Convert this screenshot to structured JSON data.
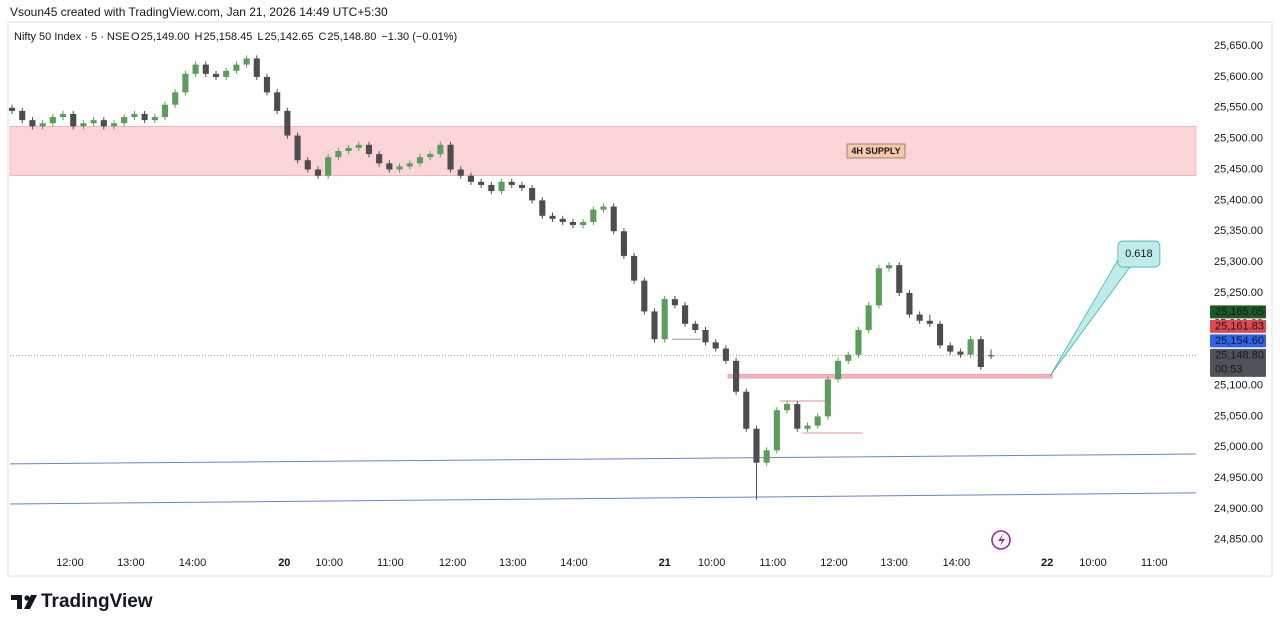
{
  "header": {
    "attribution": "Vsoun45 created with TradingView.com, Jan 21, 2026 14:49 UTC+5:30",
    "symbol": "Nifty 50 Index · 5 · NSE",
    "ohlc": [
      {
        "key": "O",
        "value": "25,149.00"
      },
      {
        "key": "H",
        "value": "25,158.45"
      },
      {
        "key": "L",
        "value": "25,142.65"
      },
      {
        "key": "C",
        "value": "25,148.80"
      }
    ],
    "change": "−1.30 (−0.01%)"
  },
  "footer": {
    "brand": "TradingView"
  },
  "chart_data": {
    "type": "candlestick",
    "up_color": "#5b9e5b",
    "down_color": "#4d4d4d",
    "ohlc": [
      [
        25550,
        25555,
        25540,
        25545
      ],
      [
        25545,
        25550,
        25525,
        25530
      ],
      [
        25530,
        25535,
        25515,
        25520
      ],
      [
        25520,
        25530,
        25515,
        25525
      ],
      [
        25525,
        25540,
        25520,
        25535
      ],
      [
        25535,
        25545,
        25530,
        25540
      ],
      [
        25540,
        25545,
        25515,
        25520
      ],
      [
        25520,
        25530,
        25515,
        25525
      ],
      [
        25525,
        25535,
        25520,
        25530
      ],
      [
        25530,
        25535,
        25515,
        25520
      ],
      [
        25520,
        25530,
        25515,
        25525
      ],
      [
        25525,
        25540,
        25520,
        25535
      ],
      [
        25535,
        25545,
        25530,
        25540
      ],
      [
        25540,
        25545,
        25525,
        25530
      ],
      [
        25530,
        25540,
        25525,
        25535
      ],
      [
        25535,
        25560,
        25530,
        25555
      ],
      [
        25555,
        25580,
        25550,
        25575
      ],
      [
        25575,
        25610,
        25570,
        25605
      ],
      [
        25605,
        25625,
        25600,
        25620
      ],
      [
        25620,
        25625,
        25600,
        25605
      ],
      [
        25605,
        25610,
        25595,
        25600
      ],
      [
        25600,
        25615,
        25595,
        25610
      ],
      [
        25610,
        25625,
        25605,
        25620
      ],
      [
        25620,
        25635,
        25615,
        25630
      ],
      [
        25630,
        25635,
        25595,
        25600
      ],
      [
        25600,
        25605,
        25570,
        25575
      ],
      [
        25575,
        25580,
        25540,
        25545
      ],
      [
        25545,
        25550,
        25500,
        25505
      ],
      [
        25505,
        25510,
        25460,
        25465
      ],
      [
        25465,
        25470,
        25445,
        25450
      ],
      [
        25450,
        25455,
        25435,
        25440
      ],
      [
        25440,
        25475,
        25435,
        25470
      ],
      [
        25470,
        25485,
        25465,
        25480
      ],
      [
        25480,
        25490,
        25475,
        25485
      ],
      [
        25485,
        25495,
        25480,
        25490
      ],
      [
        25490,
        25495,
        25470,
        25475
      ],
      [
        25475,
        25480,
        25455,
        25460
      ],
      [
        25460,
        25465,
        25445,
        25450
      ],
      [
        25450,
        25460,
        25445,
        25455
      ],
      [
        25455,
        25465,
        25450,
        25460
      ],
      [
        25460,
        25475,
        25455,
        25470
      ],
      [
        25470,
        25480,
        25465,
        25475
      ],
      [
        25475,
        25495,
        25470,
        25490
      ],
      [
        25490,
        25495,
        25445,
        25450
      ],
      [
        25450,
        25455,
        25435,
        25440
      ],
      [
        25440,
        25445,
        25425,
        25430
      ],
      [
        25430,
        25435,
        25420,
        25425
      ],
      [
        25425,
        25430,
        25410,
        25415
      ],
      [
        25415,
        25435,
        25410,
        25430
      ],
      [
        25430,
        25435,
        25420,
        25425
      ],
      [
        25425,
        25430,
        25415,
        25420
      ],
      [
        25420,
        25425,
        25395,
        25400
      ],
      [
        25400,
        25405,
        25370,
        25375
      ],
      [
        25375,
        25380,
        25365,
        25370
      ],
      [
        25370,
        25375,
        25360,
        25365
      ],
      [
        25365,
        25370,
        25355,
        25360
      ],
      [
        25360,
        25370,
        25355,
        25365
      ],
      [
        25365,
        25390,
        25360,
        25385
      ],
      [
        25385,
        25395,
        25380,
        25390
      ],
      [
        25390,
        25395,
        25345,
        25350
      ],
      [
        25350,
        25355,
        25305,
        25310
      ],
      [
        25310,
        25315,
        25265,
        25270
      ],
      [
        25270,
        25275,
        25215,
        25220
      ],
      [
        25220,
        25225,
        25170,
        25175
      ],
      [
        25175,
        25245,
        25170,
        25240
      ],
      [
        25240,
        25245,
        25225,
        25230
      ],
      [
        25230,
        25235,
        25195,
        25200
      ],
      [
        25200,
        25205,
        25185,
        25190
      ],
      [
        25190,
        25195,
        25165,
        25170
      ],
      [
        25170,
        25175,
        25155,
        25160
      ],
      [
        25160,
        25165,
        25135,
        25140
      ],
      [
        25140,
        25145,
        25085,
        25090
      ],
      [
        25090,
        25095,
        25025,
        25030
      ],
      [
        25030,
        25035,
        24915,
        24975
      ],
      [
        24975,
        25000,
        24970,
        24995
      ],
      [
        24995,
        25065,
        24990,
        25060
      ],
      [
        25060,
        25075,
        25055,
        25070
      ],
      [
        25070,
        25075,
        25025,
        25030
      ],
      [
        25030,
        25040,
        25025,
        25035
      ],
      [
        25035,
        25055,
        25030,
        25050
      ],
      [
        25050,
        25115,
        25045,
        25110
      ],
      [
        25110,
        25145,
        25105,
        25140
      ],
      [
        25140,
        25155,
        25135,
        25150
      ],
      [
        25150,
        25195,
        25145,
        25190
      ],
      [
        25190,
        25235,
        25185,
        25230
      ],
      [
        25230,
        25295,
        25225,
        25290
      ],
      [
        25290,
        25300,
        25285,
        25295
      ],
      [
        25295,
        25300,
        25245,
        25250
      ],
      [
        25250,
        25255,
        25210,
        25215
      ],
      [
        25215,
        25220,
        25200,
        25205
      ],
      [
        25205,
        25215,
        25195,
        25200
      ],
      [
        25200,
        25205,
        25160,
        25165
      ],
      [
        25165,
        25170,
        25150,
        25155
      ],
      [
        25155,
        25160,
        25145,
        25150
      ],
      [
        25150,
        25180,
        25145,
        25175
      ],
      [
        25175,
        25180,
        25125,
        25130
      ],
      [
        25149,
        25158.45,
        25142.65,
        25148.8
      ]
    ],
    "xlim": [
      -0.2,
      116.1
    ],
    "ylim": [
      24793,
      25689
    ],
    "xticks": [
      {
        "value": 5.68,
        "label": "12:00"
      },
      {
        "value": 11.65,
        "label": "13:00"
      },
      {
        "value": 17.7,
        "label": "14:00"
      },
      {
        "value": 26.7,
        "label": "20"
      },
      {
        "value": 31.1,
        "label": "10:00"
      },
      {
        "value": 37.1,
        "label": "11:00"
      },
      {
        "value": 43.2,
        "label": "12:00"
      },
      {
        "value": 49.1,
        "label": "13:00"
      },
      {
        "value": 55.1,
        "label": "14:00"
      },
      {
        "value": 64.0,
        "label": "21"
      },
      {
        "value": 68.6,
        "label": "10:00"
      },
      {
        "value": 74.6,
        "label": "11:00"
      },
      {
        "value": 80.6,
        "label": "12:00"
      },
      {
        "value": 86.5,
        "label": "13:00"
      },
      {
        "value": 92.6,
        "label": "14:00"
      },
      {
        "value": 101.5,
        "label": "22"
      },
      {
        "value": 106.0,
        "label": "10:00"
      },
      {
        "value": 112.0,
        "label": "11:00"
      }
    ],
    "yticks": [
      {
        "value": 24850,
        "label": "24,850.00"
      },
      {
        "value": 24900,
        "label": "24,900.00"
      },
      {
        "value": 24950,
        "label": "24,950.00"
      },
      {
        "value": 25000,
        "label": "25,000.00"
      },
      {
        "value": 25050,
        "label": "25,050.00"
      },
      {
        "value": 25100,
        "label": "25,100.00"
      },
      {
        "value": 25150,
        "label": "25,150.00"
      },
      {
        "value": 25200,
        "label": "25,200.00"
      },
      {
        "value": 25250,
        "label": "25,250.00"
      },
      {
        "value": 25300,
        "label": "25,300.00"
      },
      {
        "value": 25350,
        "label": "25,350.00"
      },
      {
        "value": 25400,
        "label": "25,400.00"
      },
      {
        "value": 25450,
        "label": "25,450.00"
      },
      {
        "value": 25500,
        "label": "25,500.00"
      },
      {
        "value": 25550,
        "label": "25,550.00"
      },
      {
        "value": 25600,
        "label": "25,600.00"
      },
      {
        "value": 25650,
        "label": "25,650.00"
      }
    ],
    "price_labels": [
      {
        "value": 25165.05,
        "label": "25,165.05",
        "color": "#1e5a23"
      },
      {
        "value": 25161.83,
        "label": "25,161.83",
        "color": "#e0474f"
      },
      {
        "value": 25154.6,
        "label": "25,154.60",
        "color": "#2f63e8"
      },
      {
        "value": 25148.8,
        "label": "25,148.80",
        "color": "#505357",
        "countdown": "00:53"
      }
    ],
    "zones": [
      {
        "x": [
          -0.2,
          116.1
        ],
        "y": [
          25440,
          25520
        ],
        "color": "#fcd5d9",
        "label": "4H SUPPLY"
      },
      {
        "x": [
          70.2,
          102.0
        ],
        "y": [
          25112,
          25118
        ],
        "color": "#f3b3c0"
      }
    ],
    "lines": [
      {
        "from": [
          -0.2,
          24973
        ],
        "to": [
          116.1,
          24989
        ],
        "color": "#6a86bf"
      },
      {
        "from": [
          -0.2,
          24908
        ],
        "to": [
          116.1,
          24926
        ],
        "color": "#6a86bf"
      },
      {
        "from": [
          75.3,
          25075
        ],
        "to": [
          79.9,
          25075
        ],
        "color": "#f08a94"
      },
      {
        "from": [
          77.5,
          25023
        ],
        "to": [
          83.4,
          25023
        ],
        "color": "#f08a94"
      },
      {
        "from": [
          64.7,
          25175
        ],
        "to": [
          67.6,
          25175
        ],
        "color": "#9a9a9a"
      }
    ],
    "callout": {
      "text": "0.618",
      "x": 110.5,
      "y": 25313,
      "tip": [
        101.8,
        25116
      ],
      "color": "#bfeceb"
    }
  }
}
